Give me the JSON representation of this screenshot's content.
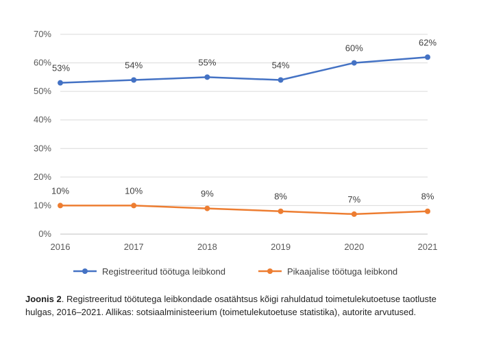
{
  "chart_data": {
    "type": "line",
    "categories": [
      "2016",
      "2017",
      "2018",
      "2019",
      "2020",
      "2021"
    ],
    "series": [
      {
        "name": "Registreeritud töötuga leibkond",
        "values": [
          53,
          54,
          55,
          54,
          60,
          62
        ],
        "labels": [
          "53%",
          "54%",
          "55%",
          "54%",
          "60%",
          "62%"
        ],
        "color": "#4472C4"
      },
      {
        "name": "Pikaajalise töötuga leibkond",
        "values": [
          10,
          10,
          9,
          8,
          7,
          8
        ],
        "labels": [
          "10%",
          "10%",
          "9%",
          "8%",
          "7%",
          "8%"
        ],
        "color": "#ED7D31"
      }
    ],
    "ylim": [
      0,
      70
    ],
    "yticks": [
      "0%",
      "10%",
      "20%",
      "30%",
      "40%",
      "50%",
      "60%",
      "70%"
    ],
    "grid": true,
    "legend_position": "bottom",
    "title": "",
    "xlabel": "",
    "ylabel": ""
  },
  "caption": {
    "label": "Joonis 2",
    "text": ". Registreeritud töötutega leibkondade osatähtsus kõigi rahuldatud toimetulekutoetuse taotluste hulgas, 2016–2021. Allikas: sotsiaalministeerium (toimetulekutoetuse statistika), autorite arvutused."
  }
}
